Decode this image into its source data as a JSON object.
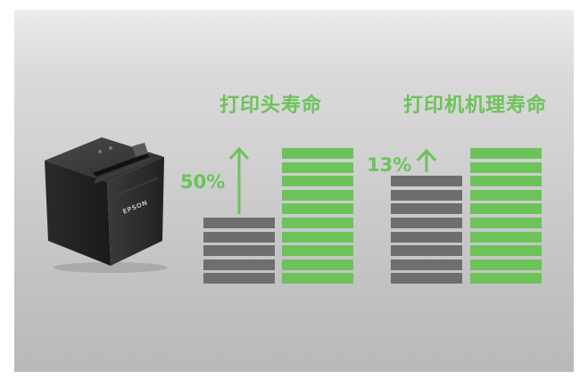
{
  "colors": {
    "green": "#6cc35a",
    "grey_bar": "#6e6e6e",
    "background_top": "#ececec",
    "background_bottom": "#b9b9b9"
  },
  "product": {
    "brand": "EPSON",
    "icon": "receipt-printer"
  },
  "sections": [
    {
      "title": "打印头寿命",
      "increase_label": "50%",
      "before_segments": 5,
      "after_segments": 10
    },
    {
      "title": "打印机机理寿命",
      "increase_label": "13%",
      "before_segments": 8,
      "after_segments": 10
    }
  ]
}
